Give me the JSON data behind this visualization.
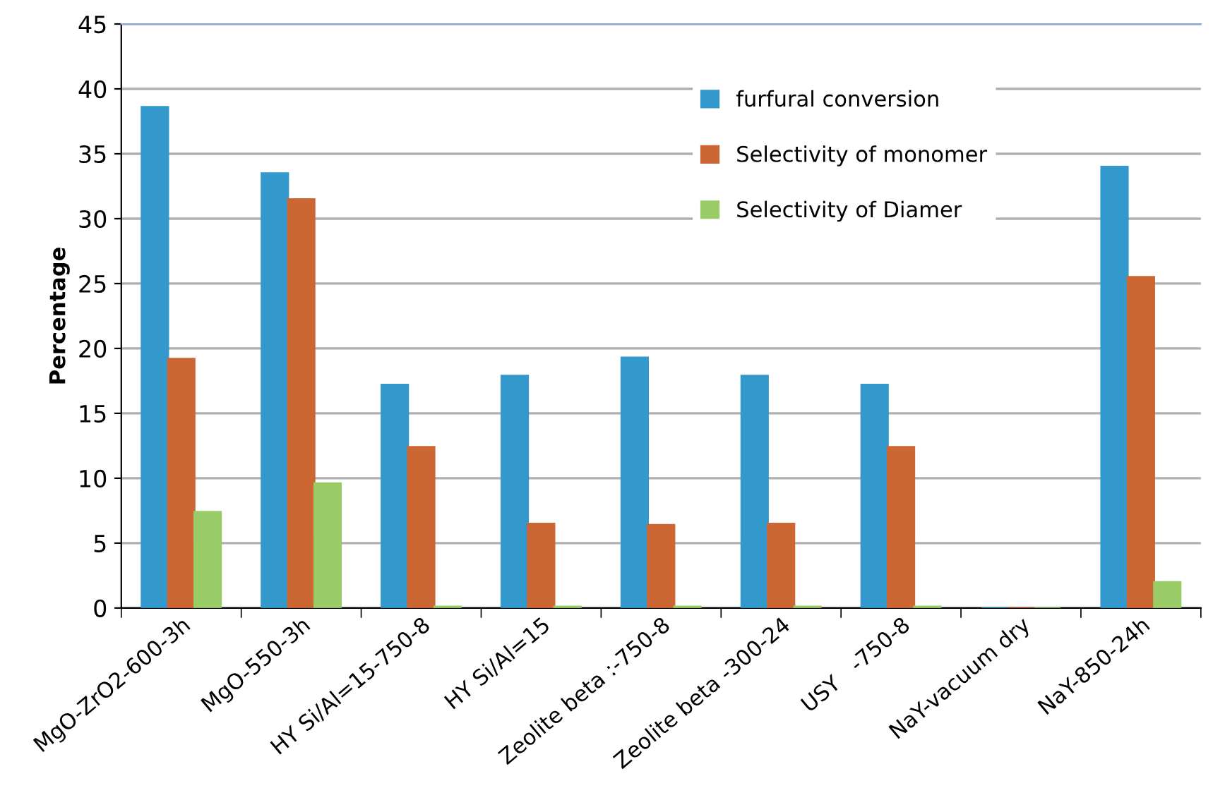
{
  "chart_data": {
    "type": "bar",
    "ylabel": "Percentage",
    "categories": [
      "MgO-ZrO2-600-3h",
      "MgO-550-3h",
      "HY Si/Al=15-750-8",
      "HY Si/Al=15",
      "Zeolite beta :-750-8",
      "Zeolite beta -300-24",
      "USY   -750-8",
      "NaY-vacuum dry",
      "NaY-850-24h"
    ],
    "series": [
      {
        "name": "furfural conversion",
        "color": "#3399cc",
        "values": [
          38.6,
          33.5,
          17.2,
          17.9,
          19.3,
          17.9,
          17.2,
          0,
          34.0
        ]
      },
      {
        "name": "Selectivity of monomer",
        "color": "#cc6633",
        "values": [
          19.2,
          31.5,
          12.4,
          6.5,
          6.4,
          6.5,
          12.4,
          0,
          25.5
        ]
      },
      {
        "name": "Selectivity of Diamer",
        "color": "#99cc66",
        "values": [
          7.4,
          9.6,
          0.1,
          0.1,
          0.1,
          0.1,
          0.1,
          0,
          2.0
        ]
      }
    ],
    "ylim": [
      0,
      45
    ],
    "yticks": [
      0,
      5,
      10,
      15,
      20,
      25,
      30,
      35,
      40,
      45
    ],
    "grid": "y",
    "legend": "top right"
  }
}
